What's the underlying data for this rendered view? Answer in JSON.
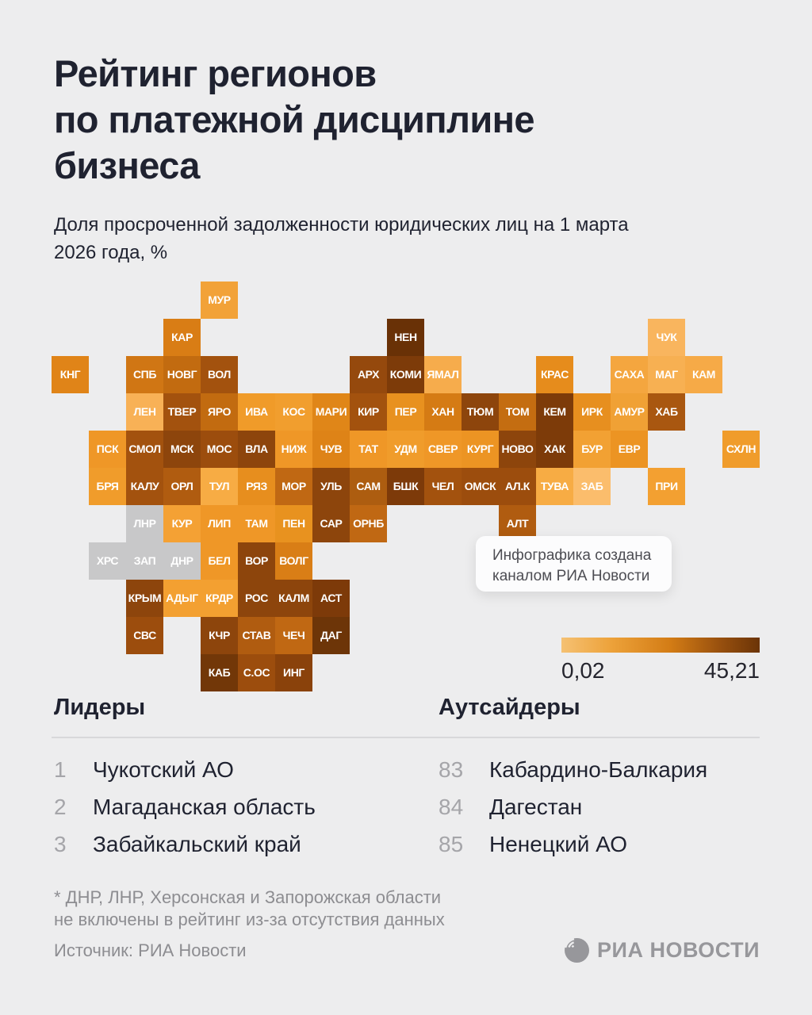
{
  "header": {
    "title_lines": [
      "Рейтинг регионов",
      "по платежной дисциплине",
      "бизнеса"
    ],
    "subtitle_lines": [
      "Доля просроченной задолженности юридических лиц на 1 марта",
      "2026 года, %"
    ]
  },
  "chart_data": {
    "type": "heatmap",
    "variant": "tile-cartogram-of-russia",
    "title": "Рейтинг регионов по платежной дисциплине бизнеса",
    "subtitle": "Доля просроченной задолженности юридических лиц на 1 марта 2026 года, %",
    "color_scale": {
      "min": 0.02,
      "max": 45.21,
      "min_label": "0,02",
      "max_label": "45,21",
      "gradient_stops": [
        "#f5c173 0%",
        "#eda23a 25%",
        "#d37c15 55%",
        "#98500e 80%",
        "#6b3407 100%"
      ]
    },
    "excluded_tile_color": "#c8c8c9",
    "excluded_regions": [
      "ДНР",
      "ЛНР",
      "ХРС",
      "ЗАП"
    ],
    "tiles": [
      {
        "code": "МУР",
        "col": 5,
        "row": 1,
        "color": "#f2a238"
      },
      {
        "code": "КАР",
        "col": 4,
        "row": 2,
        "color": "#d97d15"
      },
      {
        "code": "НЕН",
        "col": 10,
        "row": 2,
        "color": "#693106"
      },
      {
        "code": "ЧУК",
        "col": 17,
        "row": 2,
        "color": "#f9b55e"
      },
      {
        "code": "КНГ",
        "col": 1,
        "row": 3,
        "color": "#e08418"
      },
      {
        "code": "СПБ",
        "col": 3,
        "row": 3,
        "color": "#d07614"
      },
      {
        "code": "НОВГ",
        "col": 4,
        "row": 3,
        "color": "#c26b10"
      },
      {
        "code": "ВОЛ",
        "col": 5,
        "row": 3,
        "color": "#a3520e"
      },
      {
        "code": "АРХ",
        "col": 9,
        "row": 3,
        "color": "#95490d"
      },
      {
        "code": "КОМИ",
        "col": 10,
        "row": 3,
        "color": "#7d3b09"
      },
      {
        "code": "ЯМАЛ",
        "col": 11,
        "row": 3,
        "color": "#f6ac4c"
      },
      {
        "code": "КРАС",
        "col": 14,
        "row": 3,
        "color": "#e68c1c"
      },
      {
        "code": "САХА",
        "col": 16,
        "row": 3,
        "color": "#f4a63f"
      },
      {
        "code": "МАГ",
        "col": 17,
        "row": 3,
        "color": "#f7b052"
      },
      {
        "code": "КАМ",
        "col": 18,
        "row": 3,
        "color": "#f6aa47"
      },
      {
        "code": "ЛЕН",
        "col": 3,
        "row": 4,
        "color": "#f8b156"
      },
      {
        "code": "ТВЕР",
        "col": 4,
        "row": 4,
        "color": "#a3520e"
      },
      {
        "code": "ЯРО",
        "col": 5,
        "row": 4,
        "color": "#c26b10"
      },
      {
        "code": "ИВА",
        "col": 6,
        "row": 4,
        "color": "#f09b29"
      },
      {
        "code": "КОС",
        "col": 7,
        "row": 4,
        "color": "#f19e2e"
      },
      {
        "code": "МАРИ",
        "col": 8,
        "row": 4,
        "color": "#e08618"
      },
      {
        "code": "КИР",
        "col": 9,
        "row": 4,
        "color": "#a3520e"
      },
      {
        "code": "ПЕР",
        "col": 10,
        "row": 4,
        "color": "#e8911f"
      },
      {
        "code": "ХАН",
        "col": 11,
        "row": 4,
        "color": "#d57b14"
      },
      {
        "code": "ТЮМ",
        "col": 12,
        "row": 4,
        "color": "#8d450c"
      },
      {
        "code": "ТОМ",
        "col": 13,
        "row": 4,
        "color": "#c46d11"
      },
      {
        "code": "КЕМ",
        "col": 14,
        "row": 4,
        "color": "#7d3b09"
      },
      {
        "code": "ИРК",
        "col": 15,
        "row": 4,
        "color": "#e78f1f"
      },
      {
        "code": "АМУР",
        "col": 16,
        "row": 4,
        "color": "#f0a135"
      },
      {
        "code": "ХАБ",
        "col": 17,
        "row": 4,
        "color": "#a95710"
      },
      {
        "code": "ПСК",
        "col": 2,
        "row": 5,
        "color": "#ef9727"
      },
      {
        "code": "СМОЛ",
        "col": 3,
        "row": 5,
        "color": "#a3520e"
      },
      {
        "code": "МСК",
        "col": 4,
        "row": 5,
        "color": "#8d450c"
      },
      {
        "code": "МОС",
        "col": 5,
        "row": 5,
        "color": "#9c4d0d"
      },
      {
        "code": "ВЛА",
        "col": 6,
        "row": 5,
        "color": "#8d450c"
      },
      {
        "code": "НИЖ",
        "col": 7,
        "row": 5,
        "color": "#ef9727"
      },
      {
        "code": "ЧУВ",
        "col": 8,
        "row": 5,
        "color": "#de8317"
      },
      {
        "code": "ТАТ",
        "col": 9,
        "row": 5,
        "color": "#ef9727"
      },
      {
        "code": "УДМ",
        "col": 10,
        "row": 5,
        "color": "#f09c2b"
      },
      {
        "code": "СВЕР",
        "col": 11,
        "row": 5,
        "color": "#ef9727"
      },
      {
        "code": "КУРГ",
        "col": 12,
        "row": 5,
        "color": "#ec9423"
      },
      {
        "code": "НОВО",
        "col": 13,
        "row": 5,
        "color": "#8d450c"
      },
      {
        "code": "ХАК",
        "col": 14,
        "row": 5,
        "color": "#7d3b09"
      },
      {
        "code": "БУР",
        "col": 15,
        "row": 5,
        "color": "#f2a133"
      },
      {
        "code": "ЕВР",
        "col": 16,
        "row": 5,
        "color": "#ec9423"
      },
      {
        "code": "СХЛН",
        "col": 19,
        "row": 5,
        "color": "#f09c2b"
      },
      {
        "code": "БРЯ",
        "col": 2,
        "row": 6,
        "color": "#f09c2b"
      },
      {
        "code": "КАЛУ",
        "col": 3,
        "row": 6,
        "color": "#a3520e"
      },
      {
        "code": "ОРЛ",
        "col": 4,
        "row": 6,
        "color": "#b05c10"
      },
      {
        "code": "ТУЛ",
        "col": 5,
        "row": 6,
        "color": "#f7ac44"
      },
      {
        "code": "РЯЗ",
        "col": 6,
        "row": 6,
        "color": "#e78e1e"
      },
      {
        "code": "МОР",
        "col": 7,
        "row": 6,
        "color": "#c06813"
      },
      {
        "code": "УЛЬ",
        "col": 8,
        "row": 6,
        "color": "#8d450c"
      },
      {
        "code": "САМ",
        "col": 9,
        "row": 6,
        "color": "#ad5d10"
      },
      {
        "code": "БШК",
        "col": 10,
        "row": 6,
        "color": "#7d3a09"
      },
      {
        "code": "ЧЕЛ",
        "col": 11,
        "row": 6,
        "color": "#a3520e"
      },
      {
        "code": "ОМСК",
        "col": 12,
        "row": 6,
        "color": "#9c4d0d"
      },
      {
        "code": "АЛ.К",
        "col": 13,
        "row": 6,
        "color": "#9c4d0d"
      },
      {
        "code": "ТУВА",
        "col": 14,
        "row": 6,
        "color": "#f7ac44"
      },
      {
        "code": "ЗАБ",
        "col": 15,
        "row": 6,
        "color": "#fbbd6c"
      },
      {
        "code": "ПРИ",
        "col": 17,
        "row": 6,
        "color": "#f3a031"
      },
      {
        "code": "ЛНР",
        "col": 3,
        "row": 7,
        "color": "#c8c8c9"
      },
      {
        "code": "КУР",
        "col": 4,
        "row": 7,
        "color": "#f4a134"
      },
      {
        "code": "ЛИП",
        "col": 5,
        "row": 7,
        "color": "#ef9727"
      },
      {
        "code": "ТАМ",
        "col": 6,
        "row": 7,
        "color": "#ef9727"
      },
      {
        "code": "ПЕН",
        "col": 7,
        "row": 7,
        "color": "#e8921f"
      },
      {
        "code": "САР",
        "col": 8,
        "row": 7,
        "color": "#8d450c"
      },
      {
        "code": "ОРНБ",
        "col": 9,
        "row": 7,
        "color": "#c06813"
      },
      {
        "code": "АЛТ",
        "col": 13,
        "row": 7,
        "color": "#b05c10"
      },
      {
        "code": "ХРС",
        "col": 2,
        "row": 8,
        "color": "#c8c8c9"
      },
      {
        "code": "ЗАП",
        "col": 3,
        "row": 8,
        "color": "#c8c8c9"
      },
      {
        "code": "ДНР",
        "col": 4,
        "row": 8,
        "color": "#c8c8c9"
      },
      {
        "code": "БЕЛ",
        "col": 5,
        "row": 8,
        "color": "#ef9727"
      },
      {
        "code": "ВОР",
        "col": 6,
        "row": 8,
        "color": "#8d450c"
      },
      {
        "code": "ВОЛГ",
        "col": 7,
        "row": 8,
        "color": "#d97e16"
      },
      {
        "code": "КРЫМ",
        "col": 3,
        "row": 9,
        "color": "#8d450c"
      },
      {
        "code": "АДЫГ",
        "col": 4,
        "row": 9,
        "color": "#f3a031"
      },
      {
        "code": "КРДР",
        "col": 5,
        "row": 9,
        "color": "#f3a031"
      },
      {
        "code": "РОС",
        "col": 6,
        "row": 9,
        "color": "#8d450c"
      },
      {
        "code": "КАЛМ",
        "col": 7,
        "row": 9,
        "color": "#8d450c"
      },
      {
        "code": "АСТ",
        "col": 8,
        "row": 9,
        "color": "#7d3a09"
      },
      {
        "code": "СВС",
        "col": 3,
        "row": 10,
        "color": "#9c4d0d"
      },
      {
        "code": "КЧР",
        "col": 5,
        "row": 10,
        "color": "#8d450c"
      },
      {
        "code": "СТАВ",
        "col": 6,
        "row": 10,
        "color": "#b05c10"
      },
      {
        "code": "ЧЕЧ",
        "col": 7,
        "row": 10,
        "color": "#c06813"
      },
      {
        "code": "ДАГ",
        "col": 8,
        "row": 10,
        "color": "#6d3508"
      },
      {
        "code": "КАБ",
        "col": 5,
        "row": 11,
        "color": "#723708"
      },
      {
        "code": "С.ОС",
        "col": 6,
        "row": 11,
        "color": "#9c4d0d"
      },
      {
        "code": "ИНГ",
        "col": 7,
        "row": 11,
        "color": "#8a420b"
      }
    ]
  },
  "tooltip": {
    "line1": "Инфографика создана",
    "line2": "каналом РИА Новости"
  },
  "ranking": {
    "leaders": {
      "heading": "Лидеры",
      "items": [
        {
          "rank": "1",
          "name": "Чукотский АО"
        },
        {
          "rank": "2",
          "name": "Магаданская область"
        },
        {
          "rank": "3",
          "name": "Забайкальский край"
        }
      ]
    },
    "outsiders": {
      "heading": "Аутсайдеры",
      "items": [
        {
          "rank": "83",
          "name": "Кабардино-Балкария"
        },
        {
          "rank": "84",
          "name": "Дагестан"
        },
        {
          "rank": "85",
          "name": "Ненецкий АО"
        }
      ]
    }
  },
  "footnote_lines": [
    "* ДНР, ЛНР, Херсонская и Запорожская области",
    "не включены в рейтинг из-за отсутствия данных"
  ],
  "footer": {
    "source": "Источник: РИА Новости",
    "logo_text": "РИА НОВОСТИ"
  }
}
